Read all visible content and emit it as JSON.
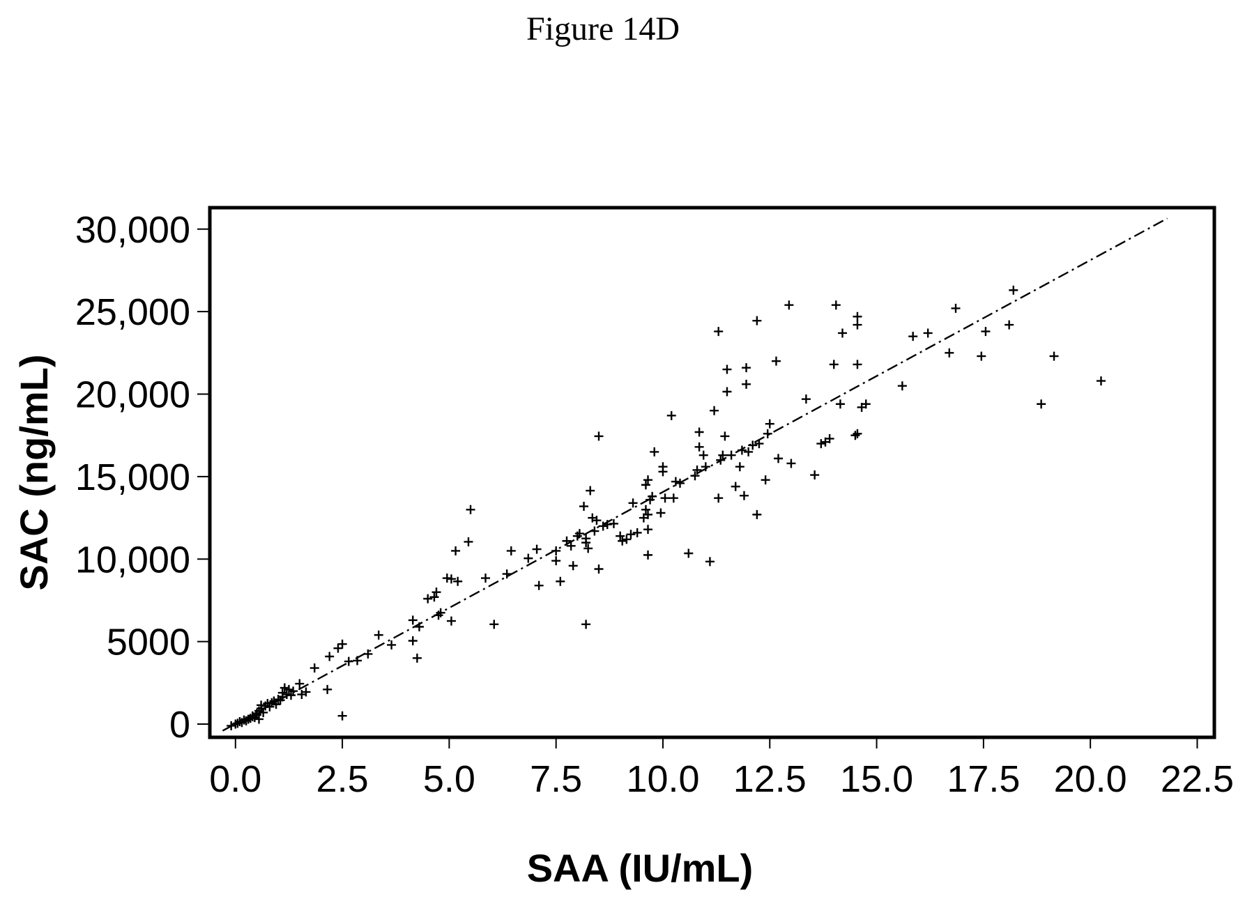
{
  "figure_label": "Figure 14D",
  "chart_data": {
    "type": "scatter",
    "title": "Figure 14D",
    "xlabel": "SAA (IU/mL)",
    "ylabel": "SAC (ng/mL)",
    "xlim": [
      -0.6,
      22.9
    ],
    "ylim": [
      -800,
      31300
    ],
    "x_ticks": [
      0.0,
      2.5,
      5.0,
      7.5,
      10.0,
      12.5,
      15.0,
      17.5,
      20.0,
      22.5
    ],
    "x_tick_labels": [
      "0.0",
      "2.5",
      "5.0",
      "7.5",
      "10.0",
      "12.5",
      "15.0",
      "17.5",
      "20.0",
      "22.5"
    ],
    "y_ticks": [
      0,
      5000,
      10000,
      15000,
      20000,
      25000,
      30000
    ],
    "y_tick_labels": [
      "0",
      "5000",
      "10,000",
      "15,000",
      "20,000",
      "25,000",
      "30,000"
    ],
    "marker": "+",
    "grid": false,
    "legend": "none",
    "trend_line": {
      "style": "dash-dot",
      "x": [
        -0.3,
        21.8
      ],
      "y": [
        -400,
        30650
      ]
    },
    "series": [
      {
        "points": [
          [
            -0.1,
            -100
          ],
          [
            0.0,
            0
          ],
          [
            0.05,
            50
          ],
          [
            0.1,
            150
          ],
          [
            0.15,
            100
          ],
          [
            0.2,
            250
          ],
          [
            0.25,
            200
          ],
          [
            0.3,
            300
          ],
          [
            0.35,
            350
          ],
          [
            0.4,
            450
          ],
          [
            0.4,
            500
          ],
          [
            0.45,
            400
          ],
          [
            0.5,
            550
          ],
          [
            0.5,
            650
          ],
          [
            0.55,
            300
          ],
          [
            0.55,
            800
          ],
          [
            0.6,
            950
          ],
          [
            0.6,
            1150
          ],
          [
            0.65,
            700
          ],
          [
            0.7,
            1100
          ],
          [
            0.75,
            1250
          ],
          [
            0.8,
            1050
          ],
          [
            0.85,
            1300
          ],
          [
            0.9,
            1400
          ],
          [
            0.95,
            1200
          ],
          [
            1.0,
            1500
          ],
          [
            1.05,
            1450
          ],
          [
            1.1,
            1650
          ],
          [
            1.1,
            1900
          ],
          [
            1.15,
            2200
          ],
          [
            1.2,
            1800
          ],
          [
            1.25,
            2100
          ],
          [
            1.3,
            1750
          ],
          [
            1.35,
            2000
          ],
          [
            1.5,
            2450
          ],
          [
            1.55,
            1800
          ],
          [
            1.65,
            1950
          ],
          [
            1.85,
            3400
          ],
          [
            2.15,
            2100
          ],
          [
            2.2,
            4100
          ],
          [
            2.4,
            4600
          ],
          [
            2.5,
            4850
          ],
          [
            2.5,
            500
          ],
          [
            2.65,
            3800
          ],
          [
            2.85,
            3850
          ],
          [
            3.1,
            4250
          ],
          [
            3.35,
            5400
          ],
          [
            3.65,
            4800
          ],
          [
            4.15,
            5050
          ],
          [
            4.15,
            6300
          ],
          [
            4.25,
            4000
          ],
          [
            4.3,
            5900
          ],
          [
            4.5,
            7600
          ],
          [
            4.65,
            7700
          ],
          [
            4.7,
            8000
          ],
          [
            4.75,
            6600
          ],
          [
            4.8,
            6750
          ],
          [
            4.95,
            8850
          ],
          [
            5.05,
            8800
          ],
          [
            5.05,
            6250
          ],
          [
            5.15,
            10500
          ],
          [
            5.2,
            8650
          ],
          [
            5.45,
            11050
          ],
          [
            5.5,
            13000
          ],
          [
            5.85,
            8850
          ],
          [
            6.05,
            6050
          ],
          [
            6.35,
            9100
          ],
          [
            6.45,
            10500
          ],
          [
            6.85,
            10050
          ],
          [
            7.05,
            10600
          ],
          [
            7.1,
            8400
          ],
          [
            7.5,
            10500
          ],
          [
            7.5,
            9900
          ],
          [
            7.6,
            8650
          ],
          [
            7.75,
            11100
          ],
          [
            7.85,
            10800
          ],
          [
            7.9,
            9600
          ],
          [
            8.0,
            11400
          ],
          [
            8.05,
            11550
          ],
          [
            8.15,
            13200
          ],
          [
            8.2,
            11250
          ],
          [
            8.2,
            11000
          ],
          [
            8.25,
            10650
          ],
          [
            8.2,
            6050
          ],
          [
            8.3,
            14150
          ],
          [
            8.35,
            12500
          ],
          [
            8.4,
            11700
          ],
          [
            8.45,
            12350
          ],
          [
            8.5,
            17450
          ],
          [
            8.5,
            9400
          ],
          [
            8.6,
            12000
          ],
          [
            8.7,
            12100
          ],
          [
            8.85,
            12150
          ],
          [
            9.0,
            11400
          ],
          [
            9.05,
            11100
          ],
          [
            9.15,
            11200
          ],
          [
            9.25,
            11500
          ],
          [
            9.3,
            13400
          ],
          [
            9.4,
            11600
          ],
          [
            9.55,
            12500
          ],
          [
            9.6,
            13000
          ],
          [
            9.6,
            14500
          ],
          [
            9.65,
            14800
          ],
          [
            9.65,
            11800
          ],
          [
            9.65,
            10250
          ],
          [
            9.65,
            12700
          ],
          [
            9.7,
            13600
          ],
          [
            9.75,
            13800
          ],
          [
            9.8,
            16500
          ],
          [
            9.95,
            12800
          ],
          [
            10.0,
            15300
          ],
          [
            10.0,
            15600
          ],
          [
            10.05,
            13700
          ],
          [
            10.2,
            18700
          ],
          [
            10.25,
            13700
          ],
          [
            10.3,
            14700
          ],
          [
            10.4,
            14600
          ],
          [
            10.6,
            10350
          ],
          [
            10.75,
            15050
          ],
          [
            10.8,
            15400
          ],
          [
            10.85,
            17700
          ],
          [
            10.85,
            16800
          ],
          [
            10.95,
            16300
          ],
          [
            11.0,
            15600
          ],
          [
            11.1,
            9850
          ],
          [
            11.2,
            19000
          ],
          [
            11.3,
            13700
          ],
          [
            11.3,
            23800
          ],
          [
            11.35,
            16000
          ],
          [
            11.4,
            16300
          ],
          [
            11.45,
            17450
          ],
          [
            11.5,
            20150
          ],
          [
            11.5,
            21500
          ],
          [
            11.6,
            16300
          ],
          [
            11.7,
            14400
          ],
          [
            11.8,
            15600
          ],
          [
            11.85,
            16600
          ],
          [
            11.9,
            13850
          ],
          [
            11.95,
            20600
          ],
          [
            11.95,
            21600
          ],
          [
            12.0,
            16500
          ],
          [
            12.1,
            16900
          ],
          [
            12.2,
            12700
          ],
          [
            12.2,
            24450
          ],
          [
            12.25,
            17000
          ],
          [
            12.4,
            14800
          ],
          [
            12.45,
            17600
          ],
          [
            12.5,
            18200
          ],
          [
            12.65,
            22000
          ],
          [
            12.7,
            16100
          ],
          [
            12.95,
            25400
          ],
          [
            13.0,
            15800
          ],
          [
            13.35,
            19700
          ],
          [
            13.55,
            15100
          ],
          [
            13.7,
            17000
          ],
          [
            13.8,
            17100
          ],
          [
            13.9,
            17300
          ],
          [
            14.0,
            21800
          ],
          [
            14.05,
            25400
          ],
          [
            14.15,
            19400
          ],
          [
            14.2,
            23700
          ],
          [
            14.5,
            17500
          ],
          [
            14.55,
            21800
          ],
          [
            14.55,
            24700
          ],
          [
            14.55,
            24200
          ],
          [
            14.55,
            17600
          ],
          [
            14.65,
            19200
          ],
          [
            14.75,
            19400
          ],
          [
            15.6,
            20500
          ],
          [
            15.85,
            23500
          ],
          [
            16.2,
            23700
          ],
          [
            16.7,
            22500
          ],
          [
            16.85,
            25200
          ],
          [
            17.45,
            22300
          ],
          [
            17.55,
            23800
          ],
          [
            18.1,
            24200
          ],
          [
            18.2,
            26300
          ],
          [
            18.85,
            19400
          ],
          [
            19.15,
            22300
          ],
          [
            20.25,
            20800
          ]
        ]
      }
    ]
  }
}
